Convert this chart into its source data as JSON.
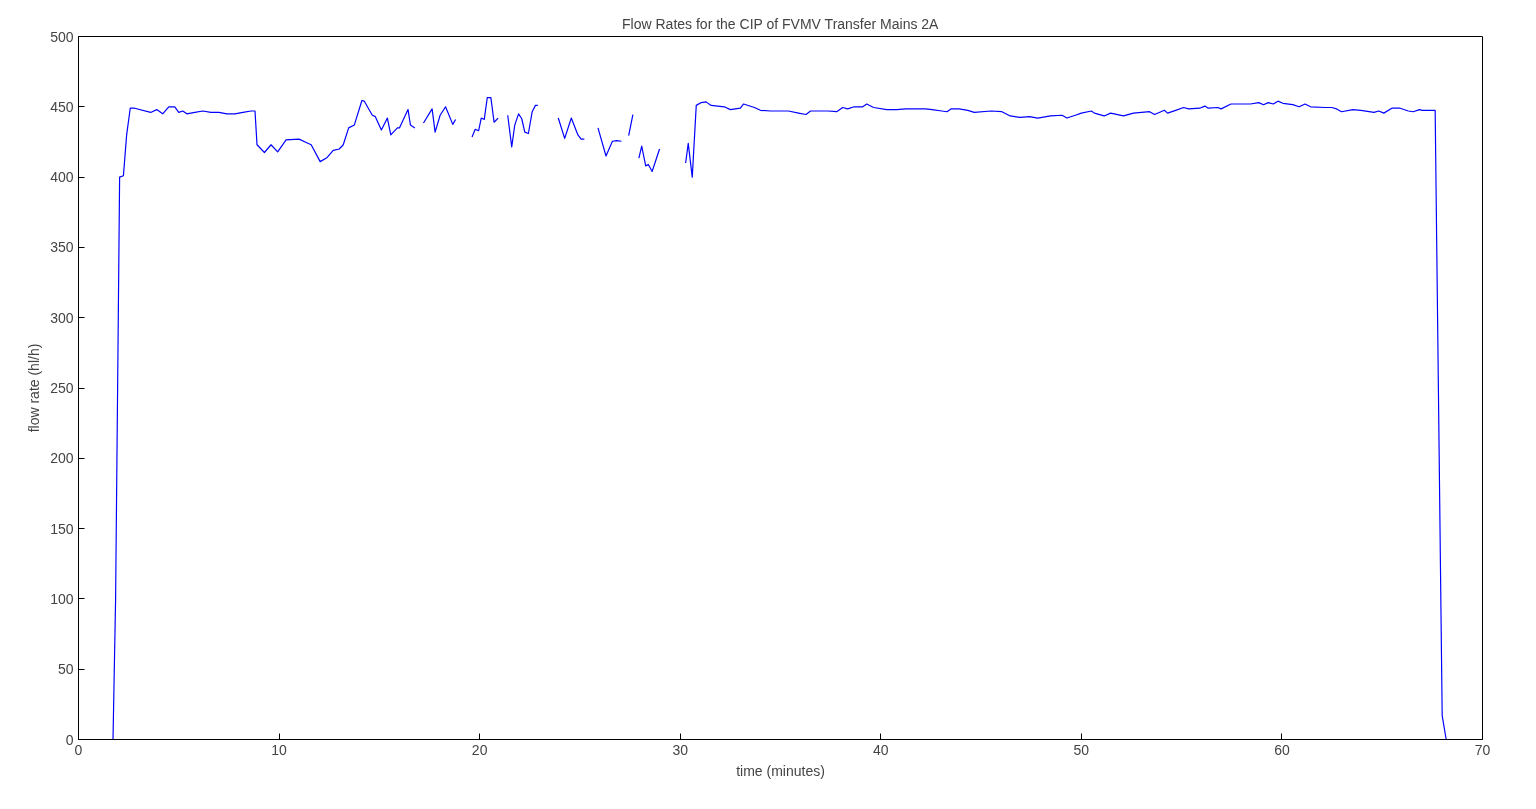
{
  "chart_data": {
    "type": "line",
    "title": "Flow Rates for the CIP of FVMV Transfer Mains 2A",
    "xlabel": "time (minutes)",
    "ylabel": "flow rate (hl/h)",
    "xlim": [
      0,
      70
    ],
    "ylim": [
      0,
      500
    ],
    "xticks": [
      0,
      10,
      20,
      30,
      40,
      50,
      60,
      70
    ],
    "yticks": [
      0,
      50,
      100,
      150,
      200,
      250,
      300,
      350,
      400,
      450,
      500
    ],
    "grid": false,
    "series": [
      {
        "color": "#0000ff",
        "x": [
          0,
          1.72,
          1.85,
          2.05,
          2.24,
          2.4,
          2.58,
          2.8,
          3.6,
          3.9,
          4.2,
          4.5,
          4.8,
          5.0,
          5.2,
          5.4,
          5.8,
          6.2,
          6.6,
          7.0,
          7.4,
          7.8,
          8.2,
          8.6,
          8.8,
          8.9,
          9.27,
          9.6,
          9.93,
          10.35,
          11.0,
          11.3,
          11.6,
          12.05,
          12.4,
          12.7,
          13.0,
          13.2,
          13.47,
          13.75,
          14.13,
          14.25,
          14.65,
          14.8,
          15.1,
          15.4,
          15.57,
          15.9,
          16.0,
          16.43,
          16.55,
          16.77,
          17.0,
          17.2,
          17.63,
          17.78,
          18.03,
          18.3,
          18.66,
          18.8,
          19.2,
          19.62,
          19.78,
          19.95,
          20.08,
          20.23,
          20.38,
          20.56,
          20.72,
          20.92,
          21.15,
          21.4,
          21.6,
          21.75,
          21.94,
          22.1,
          22.25,
          22.43,
          22.62,
          22.78,
          22.9,
          23.4,
          23.92,
          24.24,
          24.57,
          24.9,
          25.06,
          25.22,
          25.6,
          25.9,
          26.3,
          26.62,
          26.83,
          27.07,
          27.25,
          27.43,
          27.64,
          27.8,
          27.94,
          28.08,
          28.28,
          28.41,
          28.6,
          28.97,
          29.6,
          30.27,
          30.4,
          30.6,
          30.8,
          31.05,
          31.29,
          31.54,
          32.2,
          32.5,
          33.0,
          33.16,
          33.7,
          34.0,
          34.5,
          35.4,
          35.9,
          36.27,
          36.5,
          37.37,
          37.8,
          38.1,
          38.35,
          38.67,
          39.1,
          39.3,
          39.64,
          40.3,
          40.8,
          41.26,
          42.23,
          42.56,
          43.04,
          43.3,
          43.5,
          43.9,
          44.34,
          44.66,
          45.5,
          46.04,
          46.45,
          46.93,
          47.42,
          47.82,
          48.47,
          49.04,
          49.28,
          49.7,
          50.0,
          50.5,
          50.65,
          51.14,
          51.46,
          52.1,
          52.6,
          53.4,
          53.65,
          54.14,
          54.3,
          54.7,
          55.1,
          55.35,
          55.9,
          56.16,
          56.33,
          56.8,
          56.97,
          57.46,
          58.43,
          58.84,
          59.08,
          59.32,
          59.57,
          59.8,
          60.05,
          60.54,
          60.86,
          61.15,
          61.43,
          62.16,
          62.48,
          62.73,
          62.97,
          63.54,
          63.94,
          64.59,
          64.83,
          65.08,
          65.48,
          65.89,
          66.3,
          66.54,
          66.86,
          67.0,
          67.64,
          67.99,
          68.19,
          68.47
        ],
        "values": [
          0,
          0,
          100,
          400,
          401,
          430,
          449,
          449,
          446,
          448,
          445,
          450,
          450,
          446,
          447,
          445,
          446,
          447,
          446,
          446,
          445,
          445,
          446,
          447,
          447,
          423,
          417.5,
          423,
          418,
          426.5,
          427,
          425,
          423,
          411,
          414,
          419,
          420,
          423,
          435,
          437,
          454.5,
          454,
          444,
          443,
          433.5,
          442,
          430,
          435,
          435,
          448,
          437,
          435,
          null,
          438.5,
          448.5,
          432,
          444,
          450,
          437.5,
          441,
          null,
          428.5,
          434,
          433,
          442,
          441,
          456.5,
          456.5,
          439,
          442,
          null,
          444,
          421.5,
          437,
          445,
          441.5,
          432,
          431,
          446.5,
          451,
          451,
          null,
          442,
          427.5,
          442,
          430,
          427,
          427,
          null,
          435,
          415,
          425.5,
          426,
          425.5,
          null,
          429.5,
          444.5,
          null,
          413.5,
          422,
          408,
          409,
          404,
          420,
          null,
          410,
          424,
          400,
          451,
          453,
          453.5,
          451,
          450,
          448,
          449,
          452,
          449.5,
          447.5,
          447,
          447,
          445.5,
          444.5,
          447,
          447,
          446.5,
          449.5,
          448.5,
          450,
          450,
          452,
          449.5,
          448,
          448,
          448.5,
          448.5,
          448,
          447,
          446.5,
          448.5,
          448.5,
          447.5,
          446,
          447,
          446.5,
          443.5,
          442.5,
          443,
          442,
          443.5,
          444,
          442,
          444,
          445.5,
          447,
          445.5,
          443.5,
          445.5,
          443.5,
          445.5,
          446.5,
          444.5,
          447.5,
          445.5,
          447.5,
          449.5,
          448.5,
          449,
          450.5,
          449,
          449.5,
          448.5,
          452,
          452,
          453,
          451.5,
          453,
          452,
          454,
          452.5,
          451.5,
          450,
          452,
          450,
          449.5,
          449.5,
          448.5,
          446.5,
          448,
          447.5,
          446,
          447,
          445.5,
          449,
          449,
          447,
          446.5,
          448,
          447.5,
          447.5,
          17,
          0,
          0
        ]
      }
    ]
  }
}
